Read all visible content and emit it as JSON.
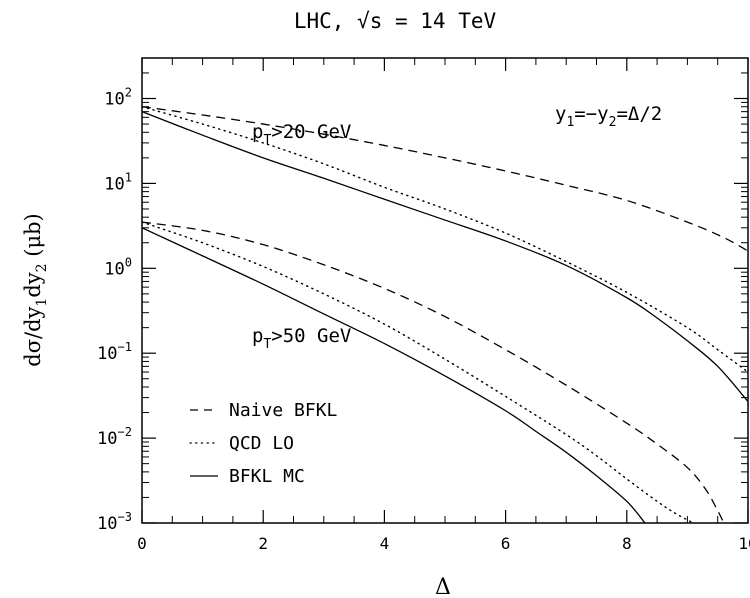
{
  "chart_data": {
    "type": "line",
    "title": "LHC, √s = 14 TeV",
    "xlabel": "Δ",
    "ylabel": {
      "main": "dσ/dy",
      "sub1": "1",
      "mid": "dy",
      "sub2": "2",
      "unit": " (μb)"
    },
    "xlim": [
      0,
      10
    ],
    "ylim": [
      0.001,
      300
    ],
    "yscale": "log",
    "grid": false,
    "x_ticks": [
      "0",
      "2",
      "4",
      "6",
      "8",
      "10"
    ],
    "y_ticks": [
      {
        "value": 0.001,
        "base": "10",
        "exp": "−3"
      },
      {
        "value": 0.01,
        "base": "10",
        "exp": "−2"
      },
      {
        "value": 0.1,
        "base": "10",
        "exp": "−1"
      },
      {
        "value": 1,
        "base": "10",
        "exp": "0"
      },
      {
        "value": 10,
        "base": "10",
        "exp": "1"
      },
      {
        "value": 100,
        "base": "10",
        "exp": "2"
      }
    ],
    "annotations": {
      "pt20": {
        "p": "p",
        "sub": "T",
        "rest": ">20 GeV"
      },
      "pt50": {
        "p": "p",
        "sub": "T",
        "rest": ">50 GeV"
      },
      "rapidity": {
        "y1": "y",
        "s1": "1",
        "mid": "=−y",
        "s2": "2",
        "rest": "=Δ/2"
      }
    },
    "legend": {
      "placement": "lower-left",
      "entries": [
        {
          "label": "Naive BFKL",
          "style": "dashed"
        },
        {
          "label": "QCD LO",
          "style": "dotted"
        },
        {
          "label": "BFKL MC",
          "style": "solid"
        }
      ]
    },
    "series": [
      {
        "group": "pT>20 GeV",
        "style": "dashed",
        "x": [
          0,
          1,
          2,
          3,
          4,
          5,
          6,
          7,
          8,
          9,
          9.6,
          10
        ],
        "y": [
          80,
          64,
          50,
          38,
          28,
          20,
          14,
          9.5,
          6.3,
          3.5,
          2.3,
          1.6
        ]
      },
      {
        "group": "pT>20 GeV",
        "style": "dotted",
        "x": [
          0,
          1,
          2,
          3,
          4,
          5,
          6,
          7,
          8,
          9,
          9.5,
          10
        ],
        "y": [
          80,
          50,
          30,
          17,
          9,
          5,
          2.6,
          1.2,
          0.52,
          0.2,
          0.11,
          0.06
        ]
      },
      {
        "group": "pT>20 GeV",
        "style": "solid",
        "x": [
          0,
          1,
          2,
          3,
          4,
          5,
          6,
          7,
          8,
          8.5,
          9,
          9.5,
          10
        ],
        "y": [
          70,
          37,
          20,
          11.5,
          6.5,
          3.7,
          2.1,
          1.08,
          0.45,
          0.26,
          0.14,
          0.07,
          0.027
        ]
      },
      {
        "group": "pT>50 GeV",
        "style": "dashed",
        "x": [
          0,
          1,
          2,
          3,
          4,
          5,
          6,
          7,
          8,
          8.5,
          9,
          9.3,
          9.5,
          9.6
        ],
        "y": [
          3.5,
          2.8,
          1.9,
          1.1,
          0.58,
          0.27,
          0.11,
          0.042,
          0.015,
          0.0085,
          0.0045,
          0.0025,
          0.0014,
          0.001
        ]
      },
      {
        "group": "pT>50 GeV",
        "style": "dotted",
        "x": [
          0,
          1,
          2,
          3,
          4,
          5,
          6,
          7,
          7.5,
          8,
          8.5,
          8.8,
          9.1
        ],
        "y": [
          3.5,
          2.0,
          1.05,
          0.5,
          0.22,
          0.085,
          0.031,
          0.011,
          0.0062,
          0.0033,
          0.0018,
          0.0013,
          0.001
        ]
      },
      {
        "group": "pT>50 GeV",
        "style": "solid",
        "x": [
          0,
          1,
          2,
          3,
          4,
          5,
          6,
          6.5,
          7,
          7.5,
          8,
          8.3
        ],
        "y": [
          3.0,
          1.4,
          0.65,
          0.29,
          0.13,
          0.054,
          0.021,
          0.012,
          0.0068,
          0.0036,
          0.0018,
          0.001
        ]
      }
    ]
  }
}
